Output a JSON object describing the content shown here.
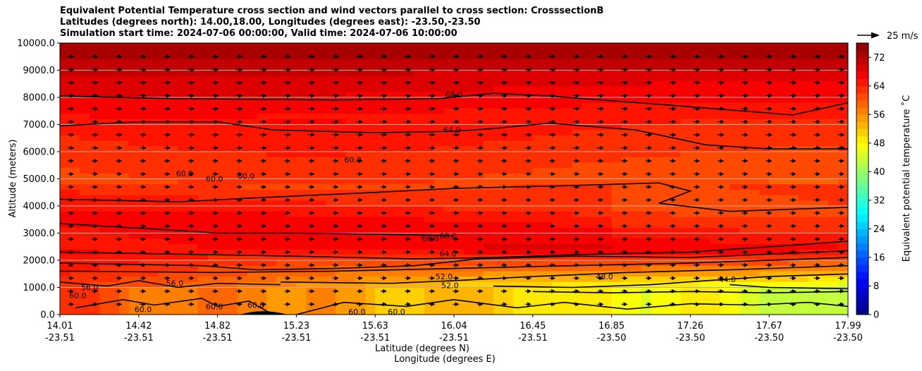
{
  "chart_data": {
    "type": "heatmap",
    "title_lines": [
      "Equivalent Potential Temperature cross section and wind vectors parallel to cross section: CrosssectionB",
      "Latitudes (degrees north): 14.00,18.00, Longitudes (degrees east): -23.50,-23.50",
      "Simulation start time: 2024-07-06 00:00:00, Valid time: 2024-07-06 10:00:00"
    ],
    "ylabel": "Altitude (meters)",
    "xlabel_lat": "Latitude (degrees N)",
    "xlabel_lon": "Longitude (degrees E)",
    "ylim": [
      0,
      10000
    ],
    "yticks": [
      0,
      1000,
      2000,
      3000,
      4000,
      5000,
      6000,
      7000,
      8000,
      9000,
      10000
    ],
    "ytick_labels": [
      "0.0",
      "1000.0",
      "2000.0",
      "3000.0",
      "4000.0",
      "5000.0",
      "6000.0",
      "7000.0",
      "8000.0",
      "9000.0",
      "10000.0"
    ],
    "xticks_lat": [
      "14.01",
      "14.42",
      "14.82",
      "15.23",
      "15.63",
      "16.04",
      "16.45",
      "16.85",
      "17.26",
      "17.67",
      "17.99"
    ],
    "xticks_lon": [
      "-23.51",
      "-23.51",
      "-23.51",
      "-23.51",
      "-23.51",
      "-23.51",
      "-23.51",
      "-23.50",
      "-23.50",
      "-23.50",
      "-23.50"
    ],
    "colorbar": {
      "label": "Equivalent potential temperature ˚C",
      "min": 0,
      "max": 76,
      "ticks": [
        0,
        8,
        16,
        24,
        32,
        40,
        48,
        56,
        64,
        72
      ],
      "tick_labels": [
        "0",
        "8",
        "16",
        "24",
        "32",
        "40",
        "48",
        "56",
        "64",
        "72"
      ]
    },
    "quiver_key_label": "25 m/s",
    "contour_labels": [
      {
        "text": "68.0",
        "lat": 16.0,
        "alt": 8100
      },
      {
        "text": "64.0",
        "lat": 15.99,
        "alt": 6800
      },
      {
        "text": "60.0",
        "lat": 14.64,
        "alt": 5200
      },
      {
        "text": "60.0",
        "lat": 14.79,
        "alt": 5000
      },
      {
        "text": "60.0",
        "lat": 14.95,
        "alt": 5100
      },
      {
        "text": "60.0",
        "lat": 15.49,
        "alt": 5700
      },
      {
        "text": "68.0",
        "lat": 15.88,
        "alt": 2800
      },
      {
        "text": "68.0",
        "lat": 15.97,
        "alt": 2900
      },
      {
        "text": "64.0",
        "lat": 15.97,
        "alt": 2250
      },
      {
        "text": "52.0",
        "lat": 15.95,
        "alt": 1400
      },
      {
        "text": "52.0",
        "lat": 15.98,
        "alt": 1080
      },
      {
        "text": "56.0",
        "lat": 14.16,
        "alt": 1000
      },
      {
        "text": "56.0",
        "lat": 14.59,
        "alt": 1150
      },
      {
        "text": "60.0",
        "lat": 14.1,
        "alt": 700
      },
      {
        "text": "60.0",
        "lat": 14.43,
        "alt": 200
      },
      {
        "text": "60.0",
        "lat": 14.79,
        "alt": 300
      },
      {
        "text": "60.0",
        "lat": 15.0,
        "alt": 350
      },
      {
        "text": "60.0",
        "lat": 15.51,
        "alt": 100
      },
      {
        "text": "60.0",
        "lat": 15.71,
        "alt": 100
      },
      {
        "text": "48.0",
        "lat": 16.76,
        "alt": 1400
      },
      {
        "text": "44.0",
        "lat": 17.38,
        "alt": 1300
      }
    ]
  }
}
